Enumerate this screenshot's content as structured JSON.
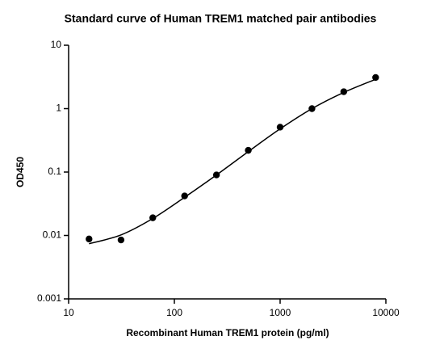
{
  "chart_data": {
    "type": "scatter",
    "title": "Standard curve of Human TREM1 matched pair antibodies",
    "xlabel": "Recombinant Human TREM1 protein (pg/ml)",
    "ylabel": "OD450",
    "xscale": "log",
    "yscale": "log",
    "xlim": [
      10,
      10000
    ],
    "xticks": [
      10,
      100,
      1000,
      10000
    ],
    "ylim": [
      0.001,
      10
    ],
    "yticks": [
      0.001,
      0.01,
      0.1,
      1,
      10
    ],
    "color": "#000000",
    "x": [
      15.6,
      31.3,
      62.5,
      125,
      250,
      500,
      1000,
      2000,
      4000,
      8000
    ],
    "values": [
      0.0088,
      0.0085,
      0.019,
      0.042,
      0.09,
      0.22,
      0.51,
      1.0,
      1.85,
      3.1
    ],
    "fit": {
      "x": [
        15.6,
        31.3,
        62.5,
        125,
        250,
        500,
        1000,
        2000,
        4000,
        8000
      ],
      "values": [
        0.0074,
        0.0102,
        0.0185,
        0.04,
        0.09,
        0.21,
        0.48,
        1.0,
        1.8,
        2.9
      ]
    }
  }
}
